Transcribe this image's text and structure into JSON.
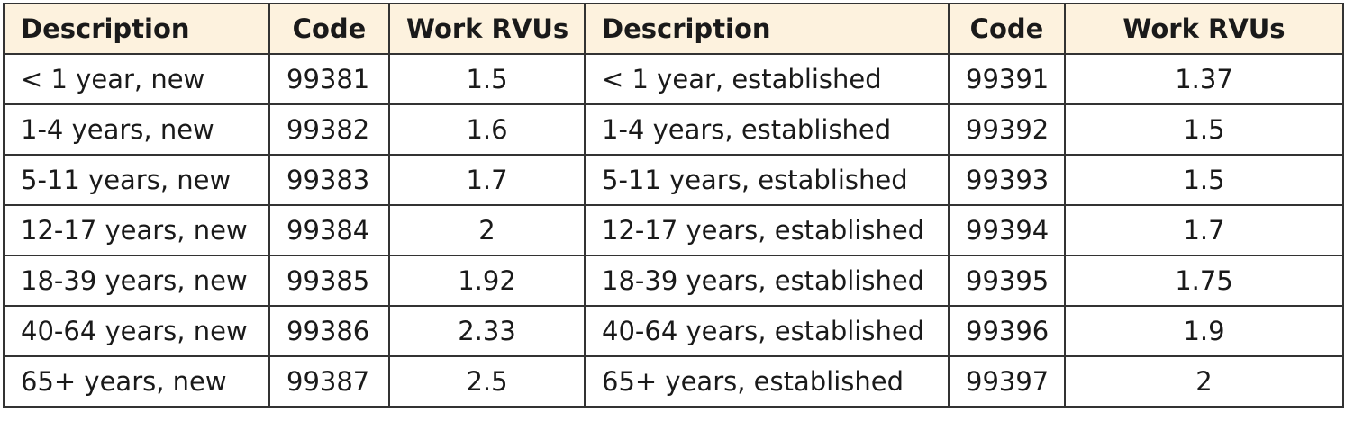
{
  "table": {
    "header": [
      "Description",
      "Code",
      "Work RVUs",
      "Description",
      "Code",
      "Work RVUs"
    ],
    "rows": [
      [
        "< 1 year, new",
        99381,
        1.5,
        "< 1 year, established",
        99391,
        1.37
      ],
      [
        "1-4 years, new",
        99382,
        1.6,
        "1-4 years, established",
        99392,
        1.5
      ],
      [
        "5-11 years, new",
        99383,
        1.7,
        "5-11 years, established",
        99393,
        1.5
      ],
      [
        "12-17 years, new",
        99384,
        2,
        "12-17 years, established",
        99394,
        1.7
      ],
      [
        "18-39 years, new",
        99385,
        1.92,
        "18-39 years, established",
        99395,
        1.75
      ],
      [
        "40-64 years, new",
        99386,
        2.33,
        "40-64 years, established",
        99396,
        1.9
      ],
      [
        "65+ years, new",
        99387,
        2.5,
        "65+ years, established",
        99397,
        2
      ]
    ]
  }
}
